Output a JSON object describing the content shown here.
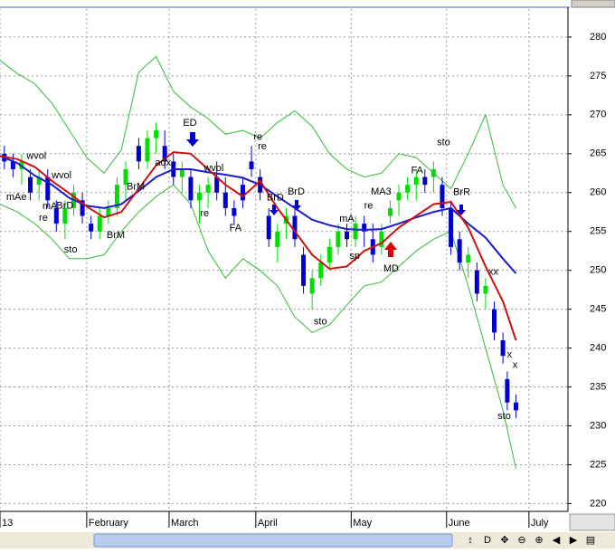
{
  "chart_data": {
    "type": "candlestick",
    "xlim": [
      0,
      131
    ],
    "xticks": [
      {
        "value": 0,
        "label": "13"
      },
      {
        "value": 20,
        "label": "February"
      },
      {
        "value": 39,
        "label": "March"
      },
      {
        "value": 59,
        "label": "April"
      },
      {
        "value": 81,
        "label": "May"
      },
      {
        "value": 103,
        "label": "June"
      },
      {
        "value": 122,
        "label": "July"
      }
    ],
    "ylim": [
      219,
      283.6
    ],
    "yticks": [
      220,
      225,
      230,
      235,
      240,
      245,
      250,
      255,
      260,
      265,
      270,
      275,
      280
    ],
    "grid": true,
    "up_color": "#00dd00",
    "down_color": "#0000cc",
    "candles": {
      "x": [
        1,
        3,
        5,
        7,
        9,
        11,
        13,
        15,
        17,
        19,
        21,
        23,
        25,
        27,
        29,
        32,
        34,
        36,
        38,
        40,
        42,
        44,
        46,
        48,
        50,
        52,
        54,
        56,
        58,
        60,
        62,
        64,
        66,
        68,
        70,
        72,
        74,
        76,
        78,
        80,
        82,
        84,
        86,
        88,
        90,
        92,
        94,
        96,
        98,
        100,
        102,
        104,
        106,
        108,
        110,
        112,
        114,
        116,
        117,
        119
      ],
      "open": [
        265,
        264,
        263,
        262,
        261,
        262,
        258,
        256,
        258,
        259,
        256,
        255,
        257,
        258,
        261,
        266,
        264,
        267,
        266,
        264,
        262,
        262,
        259,
        260,
        262,
        260,
        258,
        261,
        264,
        262,
        257,
        253,
        256,
        257,
        252,
        247,
        249,
        251,
        253,
        255,
        254,
        256,
        254,
        253,
        257,
        259,
        260,
        261,
        262,
        262,
        261,
        258,
        254,
        251,
        250,
        247,
        245,
        241,
        236,
        233
      ],
      "high": [
        266,
        265,
        265,
        263,
        263,
        263,
        259,
        259,
        261,
        260,
        257,
        258,
        259,
        262,
        264,
        267,
        268,
        269,
        268,
        265,
        264,
        263,
        261,
        262,
        264,
        262,
        259,
        262,
        266,
        263,
        258,
        256,
        258,
        258,
        253,
        250,
        252,
        254,
        256,
        256,
        257,
        257,
        256,
        256,
        259,
        261,
        262,
        263,
        263,
        264,
        262,
        259,
        255,
        253,
        251,
        249,
        246,
        242,
        237,
        234
      ],
      "low": [
        263,
        262,
        261,
        259,
        259,
        258,
        255,
        254,
        257,
        256,
        254,
        254,
        256,
        257,
        259,
        263,
        263,
        265,
        263,
        261,
        260,
        258,
        256,
        258,
        259,
        257,
        256,
        258,
        262,
        259,
        253,
        251,
        254,
        253,
        247,
        245,
        248,
        250,
        252,
        253,
        253,
        253,
        251,
        252,
        256,
        257,
        259,
        259,
        260,
        260,
        257,
        252,
        250,
        249,
        246,
        245,
        241,
        238,
        232,
        231
      ],
      "close": [
        264,
        263,
        264,
        260,
        262,
        259,
        256,
        258,
        260,
        257,
        255,
        257,
        258,
        261,
        263,
        264,
        267,
        268,
        264,
        262,
        263,
        259,
        260,
        261,
        260,
        258,
        257,
        259,
        263,
        260,
        254,
        255,
        257,
        254,
        248,
        249,
        251,
        253,
        255,
        254,
        256,
        255,
        252,
        255,
        258,
        260,
        261,
        262,
        261,
        263,
        258,
        253,
        251,
        252,
        247,
        248,
        242,
        239,
        233,
        232
      ]
    },
    "x": [
      0,
      4,
      8,
      12,
      16,
      20,
      24,
      28,
      32,
      36,
      40,
      44,
      48,
      52,
      56,
      60,
      64,
      68,
      72,
      76,
      80,
      84,
      88,
      92,
      96,
      100,
      104,
      108,
      112,
      116,
      119
    ],
    "series": [
      {
        "name": "Upper band",
        "color": "#33bb33",
        "values": [
          277.0,
          275.3,
          274.0,
          271.5,
          268.0,
          264.5,
          262.5,
          265.5,
          275.5,
          277.5,
          273.0,
          271.0,
          269.5,
          267.5,
          268.0,
          267.0,
          269.0,
          270.5,
          268.5,
          265.0,
          263.0,
          262.0,
          262.5,
          265.0,
          264.5,
          262.5,
          260.5,
          265.0,
          270.0,
          261.0,
          258.0
        ]
      },
      {
        "name": "Lower band",
        "color": "#33bb33",
        "values": [
          258.5,
          257.5,
          256.0,
          254.0,
          251.5,
          251.5,
          252.0,
          255.0,
          257.5,
          259.5,
          261.0,
          258.5,
          252.5,
          249.0,
          251.5,
          250.0,
          248.0,
          244.0,
          242.0,
          243.0,
          245.5,
          248.0,
          248.5,
          250.5,
          252.5,
          254.0,
          255.0,
          248.0,
          240.0,
          232.0,
          224.5
        ]
      },
      {
        "name": "Slow average",
        "color": "#1a1acc",
        "values": [
          264.7,
          263.8,
          262.2,
          261.0,
          259.3,
          258.3,
          258.0,
          258.5,
          260.2,
          262.0,
          263.0,
          263.0,
          262.6,
          262.3,
          261.9,
          261.0,
          259.5,
          258.0,
          256.5,
          255.8,
          255.3,
          255.2,
          255.3,
          256.0,
          256.8,
          257.5,
          258.0,
          256.0,
          254.2,
          251.5,
          249.6
        ]
      },
      {
        "name": "Fast average",
        "color": "#cc1111",
        "values": [
          264.7,
          264.3,
          263.3,
          261.5,
          259.9,
          258.2,
          256.8,
          257.5,
          260.5,
          263.5,
          265.2,
          265.0,
          263.0,
          261.0,
          259.5,
          261.5,
          258.0,
          255.0,
          252.0,
          250.2,
          250.5,
          252.5,
          253.5,
          255.5,
          257.0,
          258.5,
          258.8,
          255.5,
          250.5,
          246.0,
          241.0
        ]
      }
    ],
    "annotations": [
      {
        "text": "wvol",
        "x": 8.4,
        "y": 264.7
      },
      {
        "text": "mAe",
        "x": 3.8,
        "y": 259.4
      },
      {
        "text": "re",
        "x": 10,
        "y": 256.7
      },
      {
        "text": "mA",
        "x": 11.5,
        "y": 258.2
      },
      {
        "text": "BrD",
        "x": 15,
        "y": 258.3
      },
      {
        "text": "wvol",
        "x": 14.2,
        "y": 262.2
      },
      {
        "text": "sto",
        "x": 16.3,
        "y": 252.6
      },
      {
        "text": "BrM",
        "x": 26.7,
        "y": 254.5
      },
      {
        "text": "BrM",
        "x": 31.3,
        "y": 260.7
      },
      {
        "text": "ED",
        "x": 43.8,
        "y": 268.9
      },
      {
        "text": "adx",
        "x": 37.6,
        "y": 263.8
      },
      {
        "text": "wvol",
        "x": 49.3,
        "y": 263.1
      },
      {
        "text": "re",
        "x": 59.5,
        "y": 267.1
      },
      {
        "text": "re",
        "x": 60.5,
        "y": 265.9
      },
      {
        "text": "re",
        "x": 47.2,
        "y": 257.3
      },
      {
        "text": "FA",
        "x": 54.3,
        "y": 255.4
      },
      {
        "text": "BrD",
        "x": 63.5,
        "y": 259.3
      },
      {
        "text": "BrD",
        "x": 68.3,
        "y": 260.1
      },
      {
        "text": "sto",
        "x": 73.9,
        "y": 243.4
      },
      {
        "text": "mA",
        "x": 80,
        "y": 256.6
      },
      {
        "text": "sp",
        "x": 81.8,
        "y": 251.8
      },
      {
        "text": "re",
        "x": 85,
        "y": 258.3
      },
      {
        "text": "MA3",
        "x": 87.9,
        "y": 260.1
      },
      {
        "text": "MD",
        "x": 90.2,
        "y": 250.2
      },
      {
        "text": "FA",
        "x": 96.2,
        "y": 262.8
      },
      {
        "text": "sto",
        "x": 102.3,
        "y": 266.4
      },
      {
        "text": "BrR",
        "x": 106.5,
        "y": 260.0
      },
      {
        "text": "xx",
        "x": 113.8,
        "y": 249.8
      },
      {
        "text": "x",
        "x": 117.5,
        "y": 239.1
      },
      {
        "text": "x",
        "x": 118.8,
        "y": 237.8
      },
      {
        "text": "sto",
        "x": 116.3,
        "y": 231.2
      }
    ],
    "toolbar": [
      "↕",
      "D",
      "✥",
      "⊖",
      "⊕",
      "◀",
      "▶",
      "▤"
    ]
  }
}
